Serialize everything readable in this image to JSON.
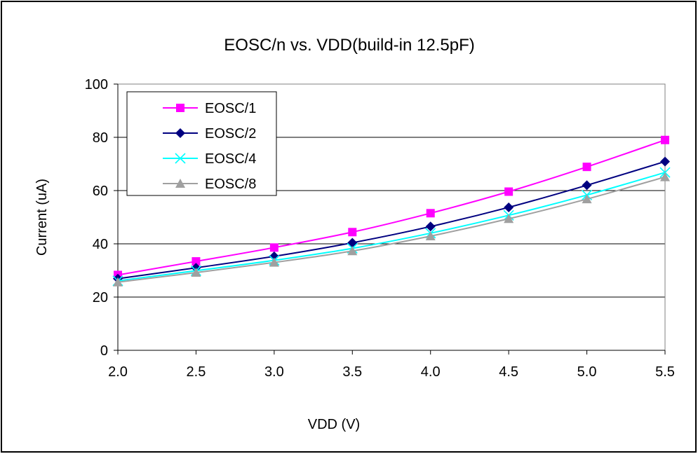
{
  "chart_data": {
    "type": "line",
    "title": "EOSC/n vs. VDD(build-in 12.5pF)",
    "xlabel": "VDD (V)",
    "ylabel": "Current (uA)",
    "xlim": [
      2.0,
      5.5
    ],
    "ylim": [
      0,
      100
    ],
    "x_ticks": [
      "2.0",
      "2.5",
      "3.0",
      "3.5",
      "4.0",
      "4.5",
      "5.0",
      "5.5"
    ],
    "y_ticks": [
      "0",
      "20",
      "40",
      "60",
      "80",
      "100"
    ],
    "x": [
      2.0,
      2.5,
      3.0,
      3.5,
      4.0,
      4.5,
      5.0,
      5.5
    ],
    "grid": "horizontal",
    "legend_position": "top-left",
    "series": [
      {
        "name": "EOSC/1",
        "color": "#FF00FF",
        "marker": "square",
        "values": [
          28.3,
          33.4,
          38.6,
          44.4,
          51.5,
          59.6,
          68.9,
          79.0
        ]
      },
      {
        "name": "EOSC/2",
        "color": "#000080",
        "marker": "diamond",
        "values": [
          26.9,
          31.0,
          35.3,
          40.4,
          46.5,
          53.7,
          62.0,
          70.9
        ]
      },
      {
        "name": "EOSC/4",
        "color": "#00FFFF",
        "marker": "x",
        "values": [
          26.1,
          29.9,
          33.8,
          38.3,
          44.0,
          50.7,
          58.3,
          66.8
        ]
      },
      {
        "name": "EOSC/8",
        "color": "#A0A0A0",
        "marker": "triangle",
        "values": [
          25.6,
          29.2,
          33.0,
          37.3,
          42.9,
          49.4,
          56.8,
          65.1
        ]
      }
    ]
  }
}
